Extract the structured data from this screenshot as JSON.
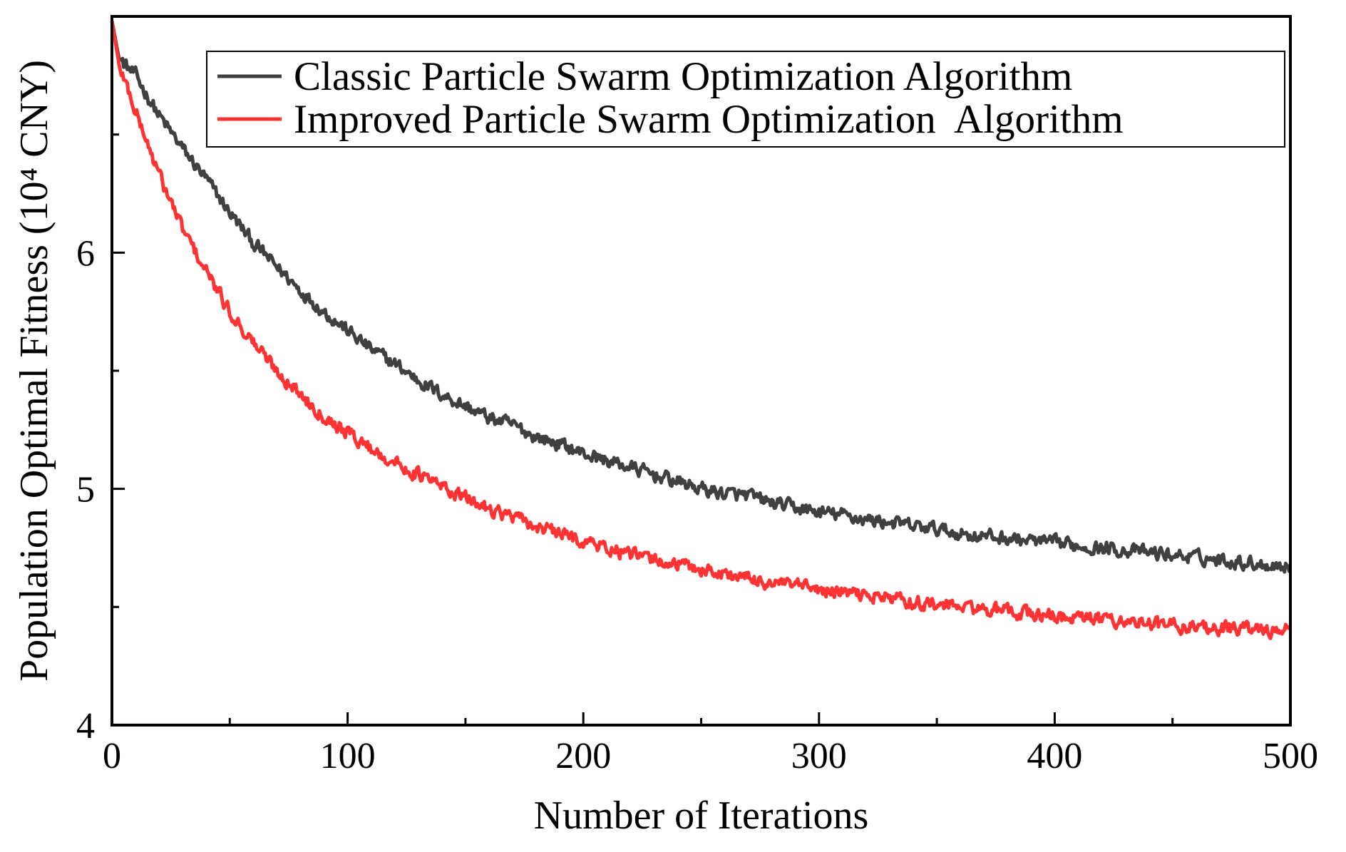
{
  "chart_data": {
    "type": "line",
    "title": "",
    "xlabel": "Number of Iterations",
    "ylabel": "Population Optimal Fitness (10⁴ CNY)",
    "xlim": [
      0,
      500
    ],
    "ylim": [
      4,
      7
    ],
    "xticks": [
      0,
      100,
      200,
      300,
      400,
      500
    ],
    "yticks": [
      4,
      5,
      6
    ],
    "grid": false,
    "legend_position": "top-right",
    "series": [
      {
        "name": "Classic Particle Swarm Optimization Algorithm",
        "color": "#404040",
        "x": [
          0,
          3,
          10,
          20,
          30,
          40,
          50,
          60,
          70,
          80,
          90,
          100,
          110,
          120,
          130,
          140,
          150,
          160,
          170,
          180,
          190,
          200,
          210,
          220,
          230,
          240,
          250,
          260,
          270,
          280,
          290,
          300,
          310,
          320,
          330,
          340,
          350,
          360,
          370,
          380,
          390,
          400,
          410,
          420,
          430,
          440,
          450,
          460,
          470,
          480,
          490,
          500
        ],
        "values": [
          6.98,
          6.82,
          6.75,
          6.58,
          6.44,
          6.31,
          6.17,
          6.04,
          5.94,
          5.84,
          5.75,
          5.67,
          5.59,
          5.53,
          5.46,
          5.4,
          5.35,
          5.3,
          5.27,
          5.22,
          5.19,
          5.15,
          5.12,
          5.09,
          5.06,
          5.03,
          5.0,
          4.98,
          4.97,
          4.94,
          4.92,
          4.9,
          4.89,
          4.87,
          4.86,
          4.84,
          4.83,
          4.81,
          4.8,
          4.79,
          4.78,
          4.77,
          4.76,
          4.75,
          4.74,
          4.73,
          4.72,
          4.71,
          4.7,
          4.69,
          4.68,
          4.67
        ]
      },
      {
        "name": "Improved Particle Swarm Optimization  Algorithm",
        "color": "#ff3333",
        "x": [
          0,
          3,
          10,
          20,
          30,
          40,
          50,
          60,
          70,
          80,
          90,
          100,
          110,
          120,
          130,
          140,
          150,
          160,
          170,
          180,
          190,
          200,
          210,
          220,
          230,
          240,
          250,
          260,
          270,
          280,
          290,
          300,
          310,
          320,
          330,
          340,
          350,
          360,
          370,
          380,
          390,
          400,
          410,
          420,
          430,
          440,
          450,
          460,
          470,
          480,
          490,
          500
        ],
        "values": [
          6.98,
          6.8,
          6.6,
          6.33,
          6.1,
          5.92,
          5.75,
          5.62,
          5.5,
          5.4,
          5.31,
          5.24,
          5.17,
          5.11,
          5.06,
          5.01,
          4.96,
          4.92,
          4.88,
          4.84,
          4.81,
          4.78,
          4.75,
          4.72,
          4.7,
          4.68,
          4.66,
          4.64,
          4.62,
          4.6,
          4.59,
          4.57,
          4.56,
          4.55,
          4.54,
          4.52,
          4.51,
          4.5,
          4.49,
          4.48,
          4.47,
          4.46,
          4.45,
          4.45,
          4.44,
          4.43,
          4.42,
          4.42,
          4.41,
          4.41,
          4.4,
          4.4
        ]
      }
    ]
  }
}
